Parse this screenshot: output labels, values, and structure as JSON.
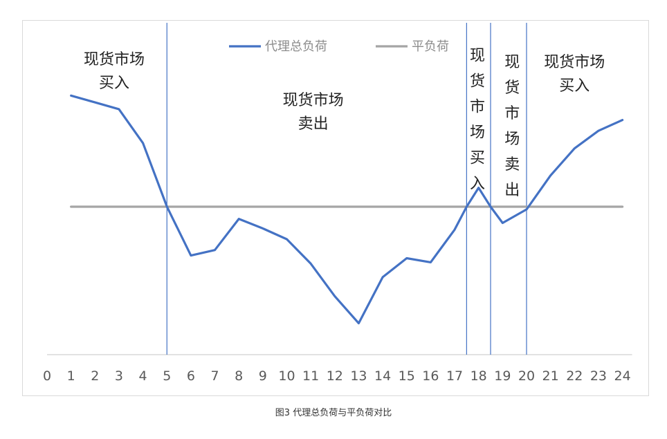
{
  "caption": "图3  代理总负荷与平负荷对比",
  "chart_data": {
    "type": "line",
    "title": "",
    "xlabel": "",
    "ylabel": "",
    "x": [
      0,
      1,
      2,
      3,
      4,
      5,
      6,
      7,
      8,
      9,
      10,
      11,
      12,
      13,
      14,
      15,
      16,
      17,
      18,
      19,
      20,
      21,
      22,
      23,
      24
    ],
    "xlim": [
      0,
      24
    ],
    "y_axis_labels_shown": false,
    "grid": false,
    "legend_position": "top-center",
    "series": [
      {
        "name": "代理总负荷",
        "color": "#4472c4",
        "x": [
          1,
          2,
          3,
          4,
          5,
          6,
          7,
          8,
          9,
          10,
          11,
          12,
          13,
          14,
          15,
          16,
          17,
          17.5,
          18,
          18.5,
          19,
          20,
          21,
          22,
          23,
          24
        ],
        "values": [
          0.82,
          0.77,
          0.72,
          0.47,
          0.0,
          -0.36,
          -0.32,
          -0.09,
          -0.16,
          -0.24,
          -0.42,
          -0.66,
          -0.86,
          -0.52,
          -0.38,
          -0.41,
          -0.17,
          0.0,
          0.14,
          0.0,
          -0.12,
          -0.02,
          0.23,
          0.43,
          0.56,
          0.64
        ]
      },
      {
        "name": "平负荷",
        "color": "#a5a5a5",
        "x": [
          1,
          24
        ],
        "values": [
          0,
          0
        ]
      }
    ],
    "ylim": [
      -1.0,
      1.15
    ],
    "divider_lines_x": [
      5,
      17.5,
      18.5,
      20
    ],
    "regions": [
      {
        "lines": [
          "现货市场",
          "买入"
        ],
        "orientation": "horizontal",
        "x": 2.8,
        "y": 1.05
      },
      {
        "lines": [
          "现货市场",
          "卖出"
        ],
        "orientation": "horizontal",
        "x": 11.1,
        "y": 0.75
      },
      {
        "lines": [
          "现",
          "货",
          "市",
          "场",
          "买",
          "入"
        ],
        "orientation": "vertical",
        "x": 17.95,
        "y": 1.08
      },
      {
        "lines": [
          "现",
          "货",
          "市",
          "场",
          "卖",
          "出"
        ],
        "orientation": "vertical",
        "x": 19.4,
        "y": 1.03
      },
      {
        "lines": [
          "现货市场",
          "买入"
        ],
        "orientation": "horizontal",
        "x": 22.0,
        "y": 1.03
      }
    ]
  }
}
